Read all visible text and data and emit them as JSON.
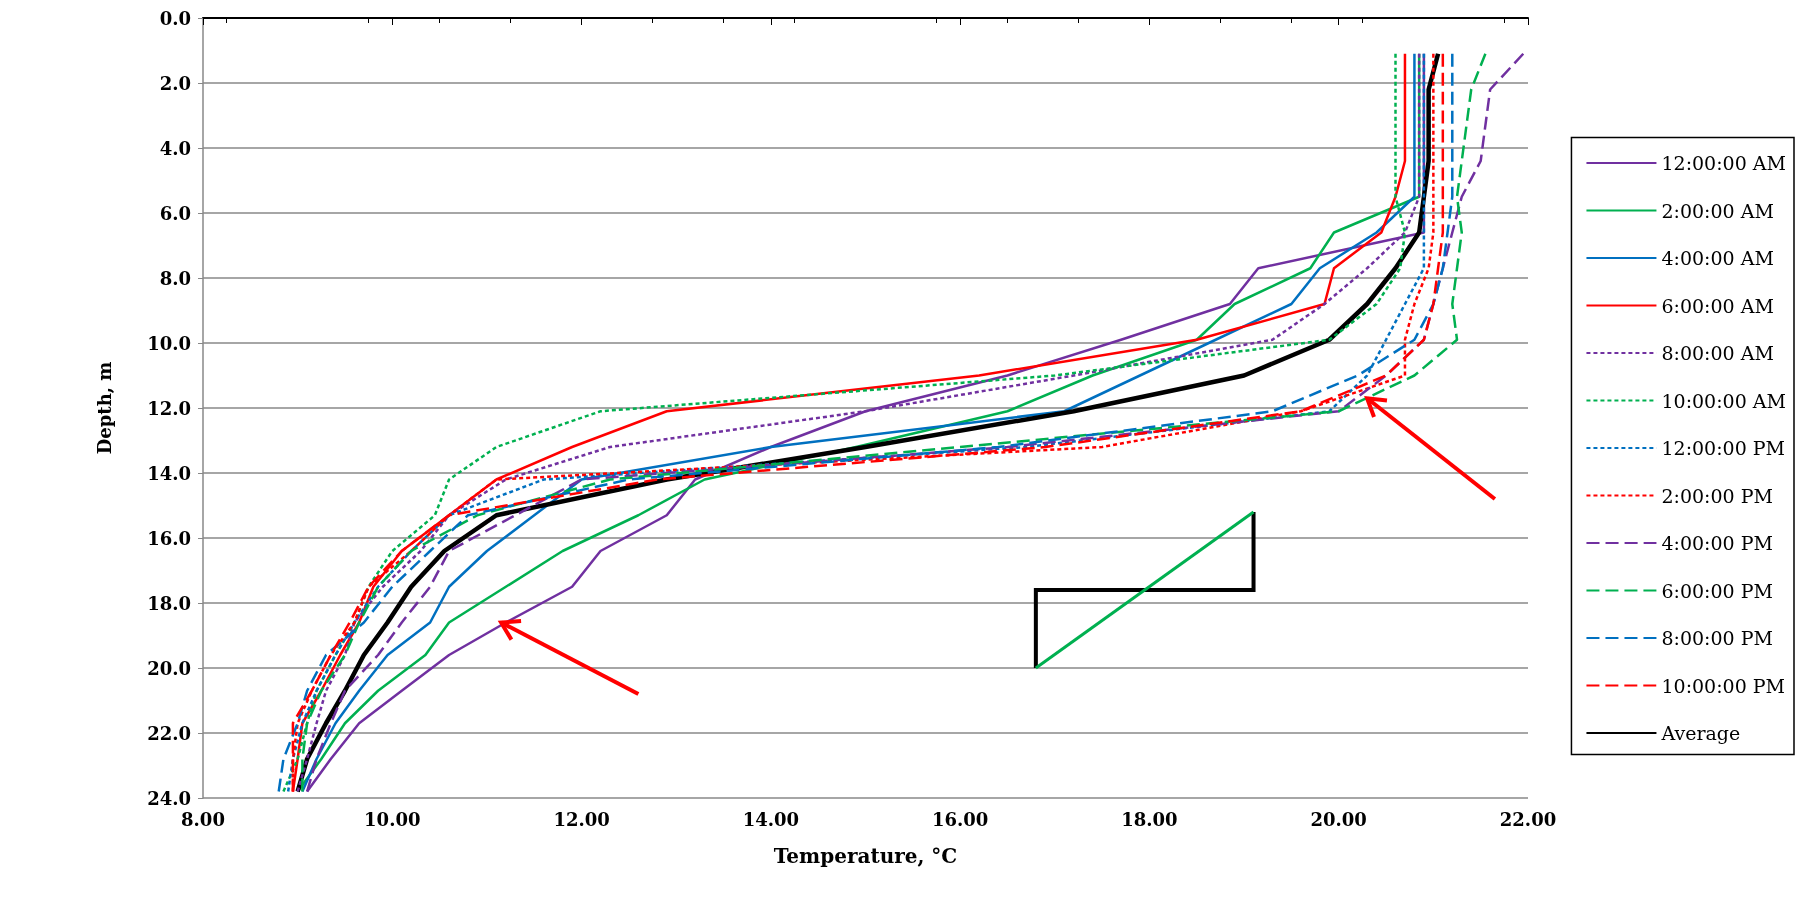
{
  "chart_data": {
    "type": "line",
    "xlabel": "Temperature, °C",
    "ylabel": "Depth, m",
    "xlim": [
      8,
      22
    ],
    "xticks": [
      {
        "value": 8,
        "label": "8.00"
      },
      {
        "value": 10,
        "label": "10.00"
      },
      {
        "value": 12,
        "label": "12.00"
      },
      {
        "value": 14,
        "label": "14.00"
      },
      {
        "value": 16,
        "label": "16.00"
      },
      {
        "value": 18,
        "label": "18.00"
      },
      {
        "value": 20,
        "label": "20.00"
      },
      {
        "value": 22,
        "label": "22.00"
      }
    ],
    "ylim": [
      24,
      0
    ],
    "yticks": [
      {
        "value": 0,
        "label": "0.0"
      },
      {
        "value": 2,
        "label": "2.0"
      },
      {
        "value": 4,
        "label": "4.0"
      },
      {
        "value": 6,
        "label": "6.0"
      },
      {
        "value": 8,
        "label": "8.0"
      },
      {
        "value": 10,
        "label": "10.0"
      },
      {
        "value": 12,
        "label": "12.0"
      },
      {
        "value": 14,
        "label": "14.0"
      },
      {
        "value": 16,
        "label": "16.0"
      },
      {
        "value": 18,
        "label": "18.0"
      },
      {
        "value": 20,
        "label": "20.0"
      },
      {
        "value": 22,
        "label": "22.0"
      },
      {
        "value": 24,
        "label": "24.0"
      }
    ],
    "grid": "y",
    "legend": "right",
    "marker": "none",
    "series": [
      {
        "name": "12:00:00 AM",
        "color": "#7030a0",
        "line_style": "solid",
        "x": [
          20.9,
          20.9,
          20.9,
          20.9,
          20.9,
          19.15,
          18.85,
          17.7,
          16.5,
          15.0,
          14.0,
          13.2,
          12.9,
          12.2,
          11.9,
          11.2,
          10.6,
          10.1,
          9.65,
          9.35,
          9.1
        ],
        "values": [
          1.1,
          2.2,
          4.4,
          5.5,
          6.6,
          7.7,
          8.8,
          9.9,
          11.0,
          12.1,
          13.2,
          14.2,
          15.3,
          16.4,
          17.5,
          18.6,
          19.6,
          20.7,
          21.7,
          22.8,
          23.8
        ]
      },
      {
        "name": "2:00:00 AM",
        "color": "#00b050",
        "line_style": "solid",
        "x": [
          20.85,
          20.85,
          20.85,
          20.85,
          19.95,
          19.7,
          18.9,
          18.5,
          17.4,
          16.5,
          14.9,
          13.3,
          12.6,
          11.8,
          11.2,
          10.6,
          10.35,
          9.85,
          9.5,
          9.25,
          9.0
        ],
        "values": [
          1.1,
          2.2,
          4.4,
          5.5,
          6.6,
          7.7,
          8.8,
          9.9,
          11.0,
          12.1,
          13.2,
          14.2,
          15.3,
          16.4,
          17.5,
          18.6,
          19.6,
          20.7,
          21.7,
          22.8,
          23.8
        ]
      },
      {
        "name": "4:00:00 AM",
        "color": "#0070c0",
        "line_style": "solid",
        "x": [
          20.8,
          20.8,
          20.8,
          20.8,
          20.4,
          19.8,
          19.5,
          18.7,
          17.9,
          17.1,
          14.0,
          12.0,
          11.5,
          11.0,
          10.6,
          10.4,
          9.95,
          9.65,
          9.4,
          9.2,
          9.05
        ],
        "values": [
          1.1,
          2.2,
          4.4,
          5.5,
          6.6,
          7.7,
          8.8,
          9.9,
          11.0,
          12.1,
          13.2,
          14.2,
          15.3,
          16.4,
          17.5,
          18.6,
          19.6,
          20.7,
          21.7,
          22.8,
          23.8
        ]
      },
      {
        "name": "6:00:00 AM",
        "color": "#ff0000",
        "line_style": "solid",
        "x": [
          20.7,
          20.7,
          20.7,
          20.6,
          20.45,
          19.95,
          19.85,
          18.5,
          16.2,
          12.9,
          11.9,
          11.1,
          10.6,
          10.1,
          9.8,
          9.65,
          9.45,
          9.25,
          9.05,
          9.0,
          8.95
        ],
        "values": [
          1.1,
          2.2,
          4.4,
          5.5,
          6.6,
          7.7,
          8.8,
          9.9,
          11.0,
          12.1,
          13.2,
          14.2,
          15.3,
          16.4,
          17.5,
          18.6,
          19.6,
          20.7,
          21.7,
          22.8,
          23.8
        ]
      },
      {
        "name": "8:00:00 AM",
        "color": "#7030a0",
        "line_style": "dotted",
        "x": [
          20.85,
          20.85,
          20.85,
          20.85,
          20.7,
          20.3,
          19.85,
          19.3,
          17.2,
          15.0,
          12.3,
          11.2,
          10.6,
          10.3,
          9.9,
          9.6,
          9.5,
          9.3,
          9.2,
          9.1,
          9.0
        ],
        "values": [
          1.1,
          2.2,
          4.4,
          5.5,
          6.6,
          7.7,
          8.8,
          9.9,
          11.0,
          12.1,
          13.2,
          14.2,
          15.3,
          16.4,
          17.5,
          18.6,
          19.6,
          20.7,
          21.7,
          22.8,
          23.8
        ]
      },
      {
        "name": "10:00:00 AM",
        "color": "#00b050",
        "line_style": "dotted",
        "x": [
          20.6,
          20.6,
          20.6,
          20.6,
          20.7,
          20.65,
          20.4,
          19.9,
          17.0,
          12.2,
          11.1,
          10.6,
          10.45,
          10.0,
          9.75,
          9.6,
          9.4,
          9.2,
          9.1,
          9.0,
          8.85
        ],
        "values": [
          1.1,
          2.2,
          4.4,
          5.5,
          6.6,
          7.7,
          8.8,
          9.9,
          11.0,
          12.1,
          13.2,
          14.2,
          15.3,
          16.4,
          17.5,
          18.6,
          19.6,
          20.7,
          21.7,
          22.8,
          23.8
        ]
      },
      {
        "name": "12:00:00 PM",
        "color": "#0070c0",
        "line_style": "dotted",
        "x": [
          20.9,
          20.9,
          20.9,
          20.9,
          20.9,
          20.9,
          20.7,
          20.5,
          20.3,
          19.9,
          16.7,
          11.6,
          10.6,
          10.2,
          9.85,
          9.6,
          9.4,
          9.2,
          9.05,
          8.95,
          8.9
        ],
        "values": [
          1.1,
          2.2,
          4.4,
          5.5,
          6.6,
          7.7,
          8.8,
          9.9,
          11.0,
          12.1,
          13.2,
          14.2,
          15.3,
          16.4,
          17.5,
          18.6,
          19.6,
          20.7,
          21.7,
          22.8,
          23.8
        ]
      },
      {
        "name": "2:00:00 PM",
        "color": "#ff0000",
        "line_style": "dotted",
        "x": [
          21.0,
          21.0,
          21.0,
          21.0,
          21.0,
          20.95,
          20.8,
          20.7,
          20.7,
          19.6,
          17.5,
          11.1,
          10.6,
          10.2,
          9.75,
          9.6,
          9.35,
          9.15,
          9.0,
          8.95,
          8.95
        ],
        "values": [
          1.1,
          2.2,
          4.4,
          5.5,
          6.6,
          7.7,
          8.8,
          9.9,
          11.0,
          12.1,
          13.2,
          14.2,
          15.3,
          16.4,
          17.5,
          18.6,
          19.6,
          20.7,
          21.7,
          22.8,
          23.8
        ]
      },
      {
        "name": "4:00:00 PM",
        "color": "#7030a0",
        "line_style": "dashed",
        "x": [
          21.95,
          21.6,
          21.5,
          21.3,
          21.2,
          21.1,
          21.0,
          20.9,
          20.5,
          20.0,
          16.5,
          12.0,
          11.3,
          10.6,
          10.4,
          10.1,
          9.85,
          9.5,
          9.35,
          9.2,
          9.1
        ],
        "values": [
          1.1,
          2.2,
          4.4,
          5.5,
          6.6,
          7.7,
          8.8,
          9.9,
          11.0,
          12.1,
          13.2,
          14.2,
          15.3,
          16.4,
          17.5,
          18.6,
          19.6,
          20.7,
          21.7,
          22.8,
          23.8
        ]
      },
      {
        "name": "6:00:00 PM",
        "color": "#00b050",
        "line_style": "dashed",
        "x": [
          21.55,
          21.4,
          21.3,
          21.25,
          21.3,
          21.25,
          21.2,
          21.25,
          20.8,
          20.0,
          16.0,
          12.3,
          10.9,
          10.2,
          9.85,
          9.65,
          9.5,
          9.25,
          9.1,
          9.05,
          9.05
        ],
        "values": [
          1.1,
          2.2,
          4.4,
          5.5,
          6.6,
          7.7,
          8.8,
          9.9,
          11.0,
          12.1,
          13.2,
          14.2,
          15.3,
          16.4,
          17.5,
          18.6,
          19.6,
          20.7,
          21.7,
          22.8,
          23.8
        ]
      },
      {
        "name": "8:00:00 PM",
        "color": "#0070c0",
        "line_style": "dashed",
        "x": [
          21.2,
          21.2,
          21.2,
          21.2,
          21.15,
          21.1,
          21.0,
          20.8,
          20.2,
          19.3,
          16.4,
          12.5,
          10.8,
          10.4,
          10.0,
          9.7,
          9.3,
          9.1,
          9.0,
          8.85,
          8.8
        ],
        "values": [
          1.1,
          2.2,
          4.4,
          5.5,
          6.6,
          7.7,
          8.8,
          9.9,
          11.0,
          12.1,
          13.2,
          14.2,
          15.3,
          16.4,
          17.5,
          18.6,
          19.6,
          20.7,
          21.7,
          22.8,
          23.8
        ]
      },
      {
        "name": "10:00:00 PM",
        "color": "#ff0000",
        "line_style": "dashed",
        "x": [
          21.1,
          21.1,
          21.1,
          21.1,
          21.1,
          21.05,
          21.0,
          20.9,
          20.5,
          19.6,
          16.9,
          12.8,
          10.6,
          10.1,
          9.75,
          9.55,
          9.35,
          9.15,
          8.95,
          8.95,
          8.95
        ],
        "values": [
          1.1,
          2.2,
          4.4,
          5.5,
          6.6,
          7.7,
          8.8,
          9.9,
          11.0,
          12.1,
          13.2,
          14.2,
          15.3,
          16.4,
          17.5,
          18.6,
          19.6,
          20.7,
          21.7,
          22.8,
          23.8
        ]
      },
      {
        "name": "Average",
        "color": "#000000",
        "line_style": "solid",
        "x": [
          21.05,
          20.95,
          20.95,
          20.9,
          20.85,
          20.6,
          20.3,
          19.9,
          19.0,
          17.2,
          15.0,
          12.9,
          11.1,
          10.55,
          10.2,
          9.95,
          9.7,
          9.5,
          9.3,
          9.1,
          9.0
        ],
        "values": [
          1.1,
          2.2,
          4.4,
          5.5,
          6.6,
          7.7,
          8.8,
          9.9,
          11.0,
          12.1,
          13.2,
          14.2,
          15.3,
          16.4,
          17.5,
          18.6,
          19.6,
          20.7,
          21.7,
          22.8,
          23.8
        ]
      }
    ]
  }
}
